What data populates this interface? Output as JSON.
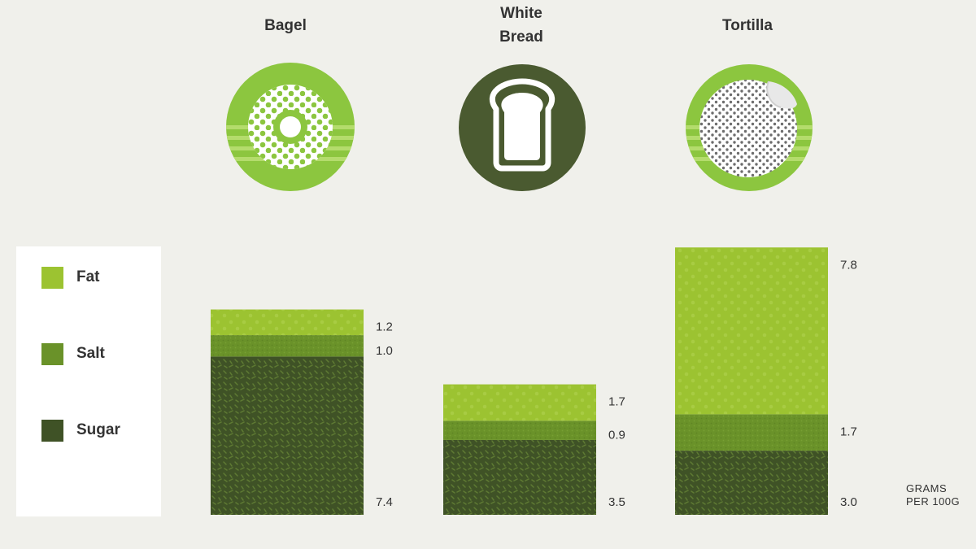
{
  "chart_data": {
    "type": "bar",
    "stacked": true,
    "categories": [
      "Bagel",
      "White\nBread",
      "Tortilla"
    ],
    "series": [
      {
        "name": "Sugar",
        "values": [
          7.4,
          3.5,
          3.0
        ],
        "color": "#3f5226"
      },
      {
        "name": "Salt",
        "values": [
          1.0,
          0.9,
          1.7
        ],
        "color": "#6a9229"
      },
      {
        "name": "Fat",
        "values": [
          1.2,
          1.7,
          7.8
        ],
        "color": "#9cc331"
      }
    ],
    "value_labels": [
      [
        "7.4",
        "1.0",
        "1.2"
      ],
      [
        "3.5",
        "0.9",
        "1.7"
      ],
      [
        "3.0",
        "1.7",
        "7.8"
      ]
    ],
    "unit_label": "GRAMS\nPER 100G",
    "legend": [
      "Fat",
      "Salt",
      "Sugar"
    ],
    "legend_position": "left",
    "grid": false,
    "ylim": [
      0,
      12.5
    ]
  },
  "icons": [
    "bagel-icon",
    "white-bread-icon",
    "tortilla-icon"
  ],
  "colors": {
    "background": "#f0f0eb",
    "legend_background": "#ffffff",
    "text": "#333333",
    "icon_light_green": "#8cc63f",
    "icon_dark_green": "#4a5a30"
  }
}
